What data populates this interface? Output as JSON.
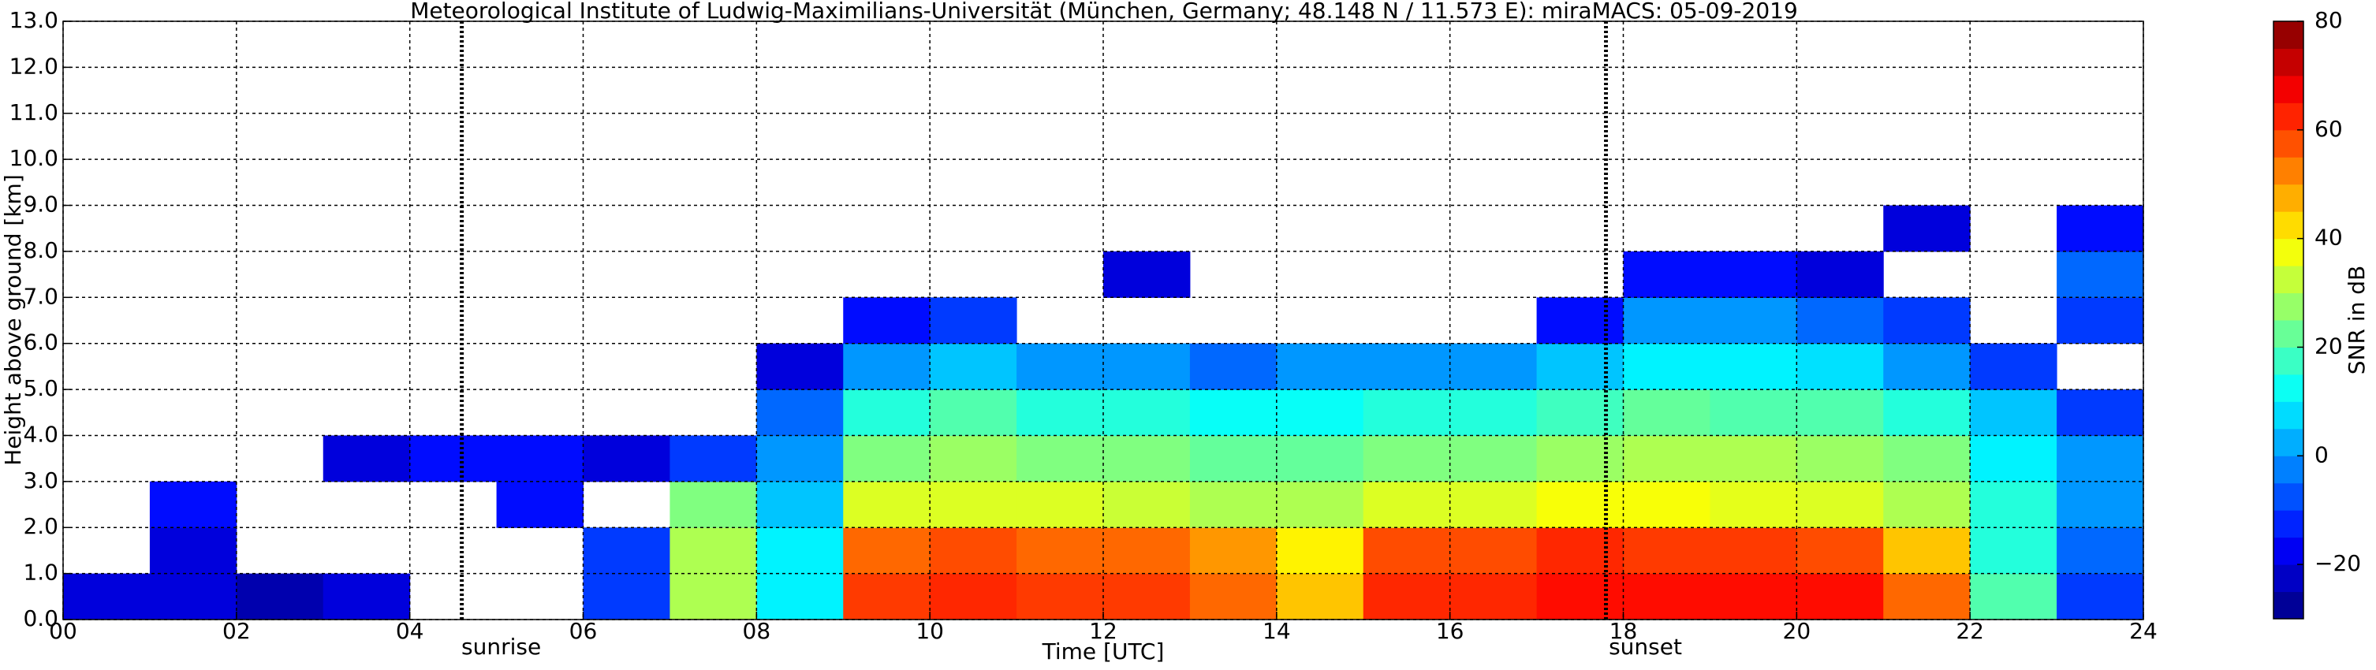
{
  "chart_data": {
    "type": "heatmap",
    "title": "Meteorological Institute of Ludwig-Maximilians-Universität (München, Germany; 48.148 N / 11.573 E):     miraMACS: 05-09-2019",
    "xlabel": "Time [UTC]",
    "ylabel": "Height above ground [km]",
    "colorbar_label": "SNR in dB",
    "colormap": "jet",
    "grid": true,
    "xlim": [
      0,
      24
    ],
    "xticks": [
      {
        "value": 0,
        "label": "00"
      },
      {
        "value": 2,
        "label": "02"
      },
      {
        "value": 4,
        "label": "04"
      },
      {
        "value": 6,
        "label": "06"
      },
      {
        "value": 8,
        "label": "08"
      },
      10,
      12,
      14,
      16,
      18,
      20,
      22,
      24
    ],
    "ylim": [
      0,
      13
    ],
    "yticks": [
      {
        "value": 0,
        "label": "0.0"
      },
      {
        "value": 1,
        "label": "1.0"
      },
      {
        "value": 2,
        "label": "2.0"
      },
      {
        "value": 3,
        "label": "3.0"
      },
      {
        "value": 4,
        "label": "4.0"
      },
      {
        "value": 5,
        "label": "5.0"
      },
      {
        "value": 6,
        "label": "6.0"
      },
      {
        "value": 7,
        "label": "7.0"
      },
      {
        "value": 8,
        "label": "8.0"
      },
      {
        "value": 9,
        "label": "9.0"
      },
      {
        "value": 10,
        "label": "10.0"
      },
      {
        "value": 11,
        "label": "11.0"
      },
      {
        "value": 12,
        "label": "12.0"
      },
      {
        "value": 13,
        "label": "13.0"
      }
    ],
    "clim": [
      -30,
      80
    ],
    "cticks": [
      {
        "value": -20,
        "label": "−20"
      },
      0,
      20,
      40,
      60,
      80
    ],
    "annotations": [
      {
        "x": 4.6,
        "label": "sunrise"
      },
      {
        "x": 17.8,
        "label": "sunset"
      }
    ],
    "x": [
      0,
      1,
      2,
      3,
      4,
      5,
      6,
      7,
      8,
      9,
      10,
      11,
      12,
      13,
      14,
      15,
      16,
      17,
      18,
      19,
      20,
      21,
      22,
      23,
      24
    ],
    "y": [
      0,
      1,
      2,
      3,
      4,
      5,
      6,
      7,
      8,
      9,
      10,
      11,
      12,
      13
    ],
    "z": [
      [
        -20,
        -20,
        -25,
        -20,
        null,
        null,
        -10,
        30,
        10,
        60,
        62,
        60,
        60,
        55,
        45,
        62,
        62,
        65,
        65,
        65,
        65,
        55,
        20,
        -10
      ],
      [
        null,
        -20,
        null,
        null,
        null,
        null,
        -10,
        30,
        10,
        55,
        58,
        55,
        55,
        50,
        40,
        58,
        58,
        62,
        60,
        60,
        58,
        45,
        15,
        -5
      ],
      [
        null,
        -15,
        null,
        null,
        null,
        -15,
        null,
        25,
        5,
        35,
        35,
        35,
        33,
        30,
        30,
        35,
        35,
        38,
        38,
        36,
        35,
        30,
        15,
        0
      ],
      [
        null,
        null,
        null,
        -20,
        -15,
        -15,
        -20,
        -10,
        0,
        25,
        28,
        25,
        25,
        22,
        22,
        25,
        25,
        28,
        30,
        30,
        28,
        25,
        10,
        0
      ],
      [
        null,
        null,
        null,
        null,
        null,
        null,
        null,
        null,
        -5,
        15,
        20,
        15,
        15,
        12,
        12,
        15,
        15,
        18,
        22,
        20,
        20,
        15,
        5,
        -10
      ],
      [
        null,
        null,
        null,
        null,
        null,
        null,
        null,
        null,
        -20,
        0,
        5,
        0,
        0,
        -5,
        0,
        0,
        0,
        5,
        10,
        10,
        8,
        0,
        -10,
        null
      ],
      [
        null,
        null,
        null,
        null,
        null,
        null,
        null,
        null,
        null,
        -15,
        -10,
        null,
        null,
        null,
        null,
        null,
        null,
        -15,
        0,
        0,
        -5,
        -10,
        null,
        -10
      ],
      [
        null,
        null,
        null,
        null,
        null,
        null,
        null,
        null,
        null,
        null,
        null,
        null,
        -20,
        null,
        null,
        null,
        null,
        null,
        -15,
        -15,
        -20,
        null,
        null,
        -5
      ],
      [
        null,
        null,
        null,
        null,
        null,
        null,
        null,
        null,
        null,
        null,
        null,
        null,
        null,
        null,
        null,
        null,
        null,
        null,
        null,
        null,
        null,
        -20,
        null,
        -15
      ],
      [
        null,
        null,
        null,
        null,
        null,
        null,
        null,
        null,
        null,
        null,
        null,
        null,
        null,
        null,
        null,
        null,
        null,
        null,
        null,
        null,
        null,
        null,
        null,
        null
      ],
      [
        null,
        null,
        null,
        null,
        null,
        null,
        null,
        null,
        null,
        null,
        null,
        null,
        null,
        null,
        null,
        null,
        null,
        null,
        null,
        null,
        null,
        null,
        null,
        null
      ],
      [
        null,
        null,
        null,
        null,
        null,
        null,
        null,
        null,
        null,
        null,
        null,
        null,
        null,
        null,
        null,
        null,
        null,
        null,
        null,
        null,
        null,
        null,
        null,
        null
      ],
      [
        null,
        null,
        null,
        null,
        null,
        null,
        null,
        null,
        null,
        null,
        null,
        null,
        null,
        null,
        null,
        null,
        null,
        null,
        null,
        null,
        null,
        null,
        null,
        null
      ]
    ]
  }
}
